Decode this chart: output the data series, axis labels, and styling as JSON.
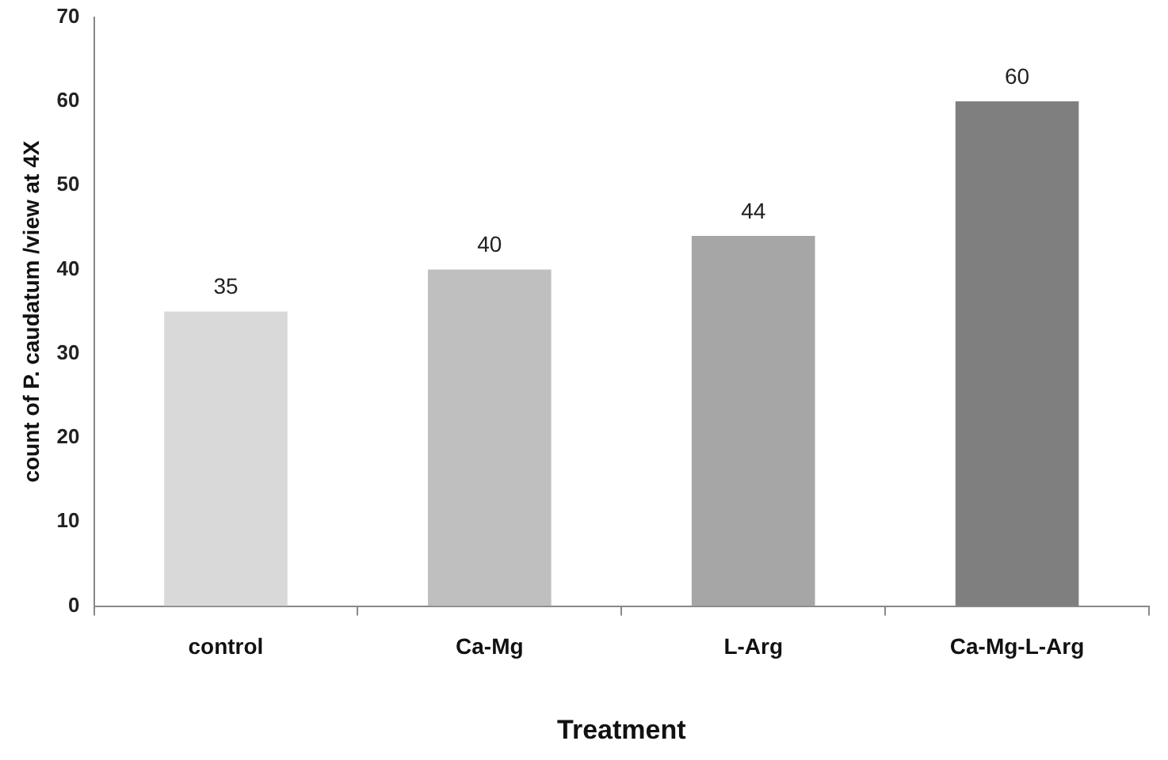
{
  "chart_data": {
    "type": "bar",
    "xlabel": "Treatment",
    "ylabel": "count of P. caudatum /view at 4X",
    "categories": [
      "control",
      "Ca-Mg",
      "L-Arg",
      "Ca-Mg-L-Arg"
    ],
    "values": [
      35,
      40,
      44,
      60
    ],
    "colors": [
      "#d9d9d9",
      "#bfbfbf",
      "#a6a6a6",
      "#7f7f7f"
    ],
    "ylim": [
      0,
      70
    ],
    "yticks": [
      0,
      10,
      20,
      30,
      40,
      50,
      60,
      70
    ],
    "grid": false,
    "legend": false,
    "data_labels": true
  }
}
